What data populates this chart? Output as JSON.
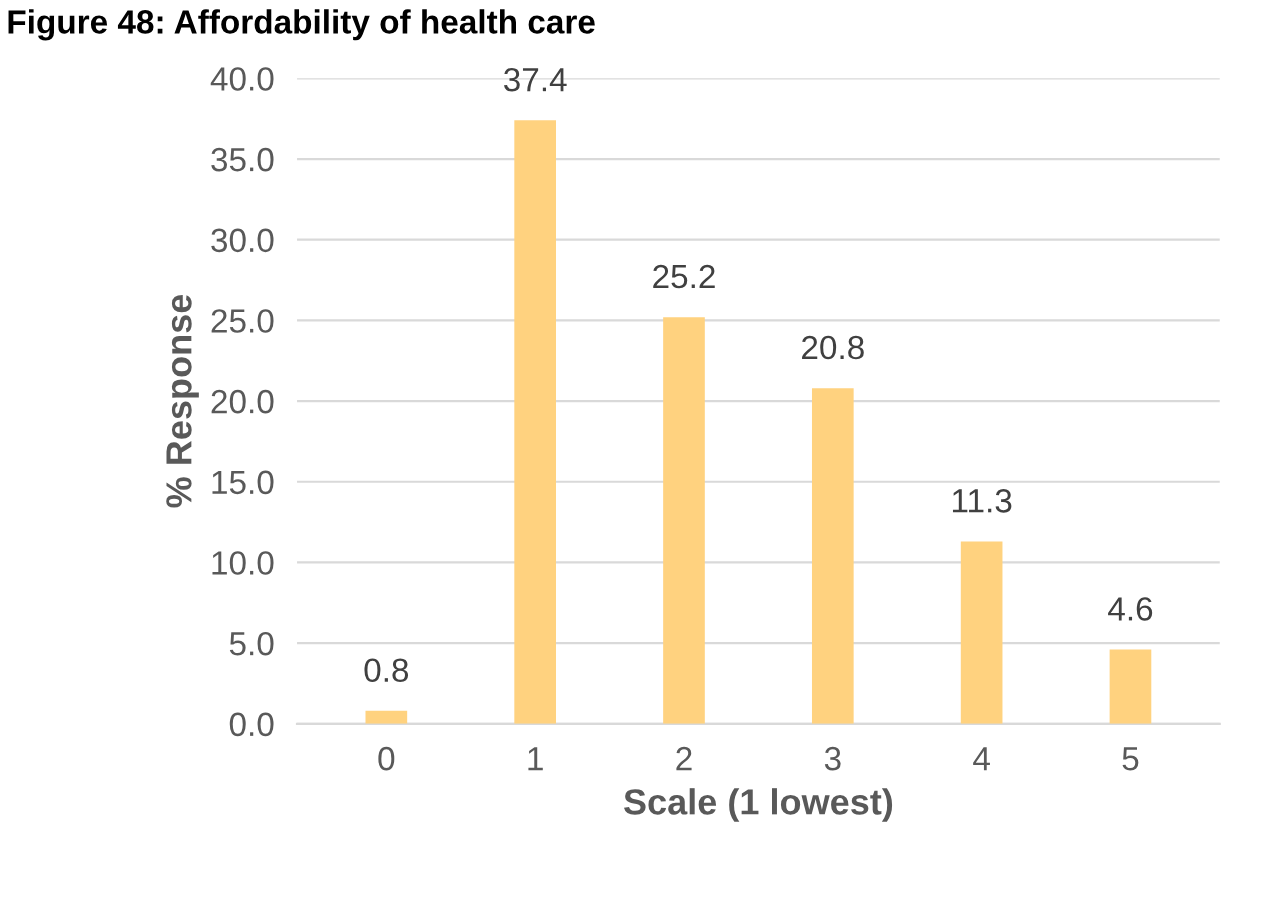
{
  "chart_data": {
    "type": "bar",
    "title": "Figure 48: Affordability of health care",
    "xlabel": "Scale (1 lowest)",
    "ylabel": "% Response",
    "categories": [
      "0",
      "1",
      "2",
      "3",
      "4",
      "5"
    ],
    "values": [
      0.8,
      37.4,
      25.2,
      20.8,
      11.3,
      4.6
    ],
    "color": "#ffd27f",
    "ylim": [
      0,
      40
    ],
    "yticks": [
      "0.0",
      "5.0",
      "10.0",
      "15.0",
      "20.0",
      "25.0",
      "30.0",
      "35.0",
      "40.0"
    ],
    "grid": "y",
    "data_labels": true
  }
}
